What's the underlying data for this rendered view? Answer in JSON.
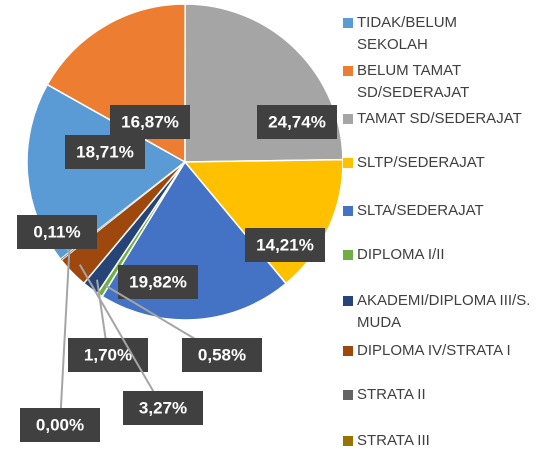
{
  "chart_data": {
    "type": "pie",
    "categories": [
      "TIDAK/BELUM SEKOLAH",
      "BELUM TAMAT SD/SEDERAJAT",
      "TAMAT SD/SEDERAJAT",
      "SLTP/SEDERAJAT",
      "SLTA/SEDERAJAT",
      "DIPLOMA I/II",
      "AKADEMI/DIPLOMA III/S. MUDA",
      "DIPLOMA IV/STRATA I",
      "STRATA II",
      "STRATA III"
    ],
    "values": [
      18.71,
      16.87,
      24.74,
      14.21,
      19.82,
      0.58,
      1.7,
      3.27,
      0.11,
      0.0
    ],
    "value_labels": [
      "18,71%",
      "16,87%",
      "24,74%",
      "14,21%",
      "19,82%",
      "0,58%",
      "1,70%",
      "3,27%",
      "0,11%",
      "0,00%"
    ],
    "colors": [
      "#5b9bd5",
      "#ed7d31",
      "#a5a5a5",
      "#ffc000",
      "#4472c4",
      "#70ad47",
      "#264478",
      "#9e480e",
      "#636363",
      "#997300"
    ],
    "legend": "right"
  }
}
